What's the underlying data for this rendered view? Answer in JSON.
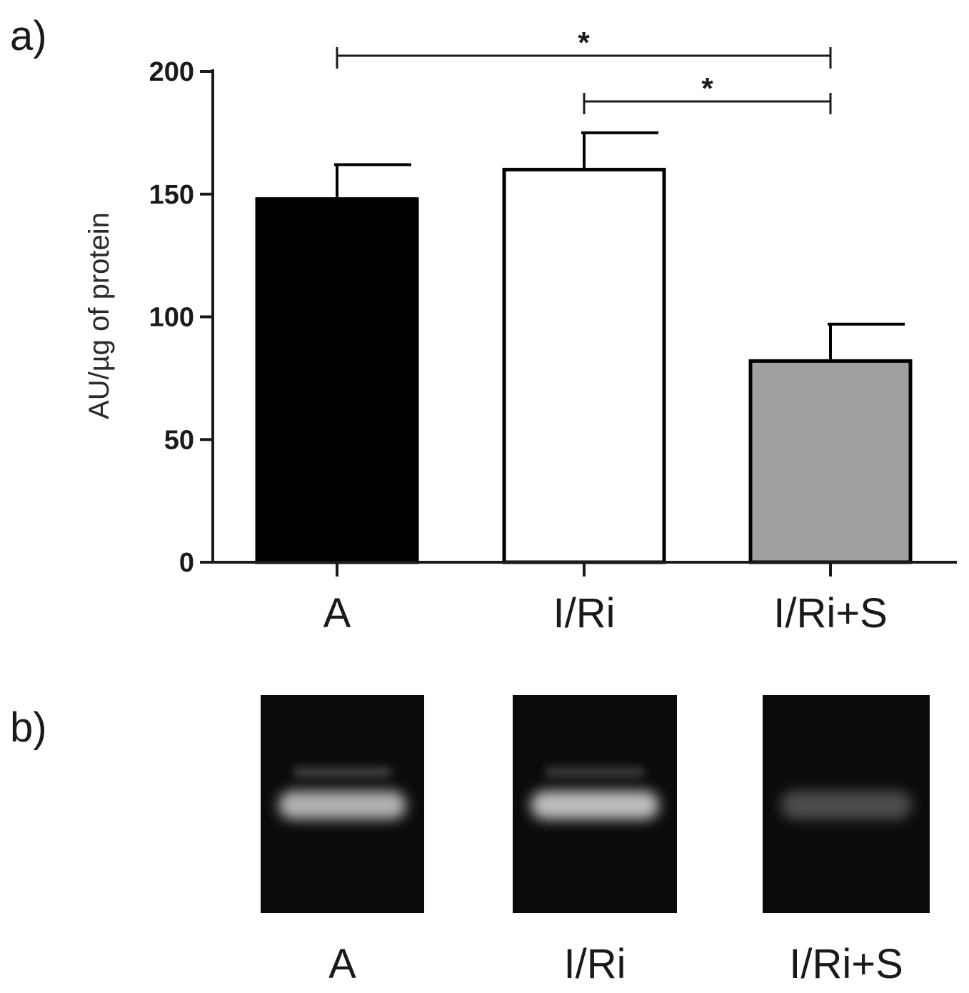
{
  "figure": {
    "panel_a_label": "a)",
    "panel_b_label": "b)"
  },
  "chart_data": {
    "type": "bar",
    "categories": [
      "A",
      "I/Ri",
      "I/Ri+S"
    ],
    "values": [
      148,
      160,
      82
    ],
    "errors": [
      14,
      15,
      15
    ],
    "colors": [
      "#000000",
      "#ffffff",
      "#a0a0a2"
    ],
    "title": "",
    "xlabel": "",
    "ylabel": "AU/µg of protein",
    "ylim": [
      0,
      200
    ],
    "yticks": [
      0,
      50,
      100,
      150,
      200
    ],
    "grid": false,
    "significance": [
      {
        "from": "A",
        "to": "I/Ri+S",
        "label": "*"
      },
      {
        "from": "I/Ri",
        "to": "I/Ri+S",
        "label": "*"
      }
    ]
  },
  "gel": {
    "lanes": [
      {
        "label": "A",
        "band_intensity": 0.82,
        "upper_band_intensity": 0.22
      },
      {
        "label": "I/Ri",
        "band_intensity": 0.88,
        "upper_band_intensity": 0.2
      },
      {
        "label": "I/Ri+S",
        "band_intensity": 0.32,
        "upper_band_intensity": 0.0
      }
    ]
  }
}
